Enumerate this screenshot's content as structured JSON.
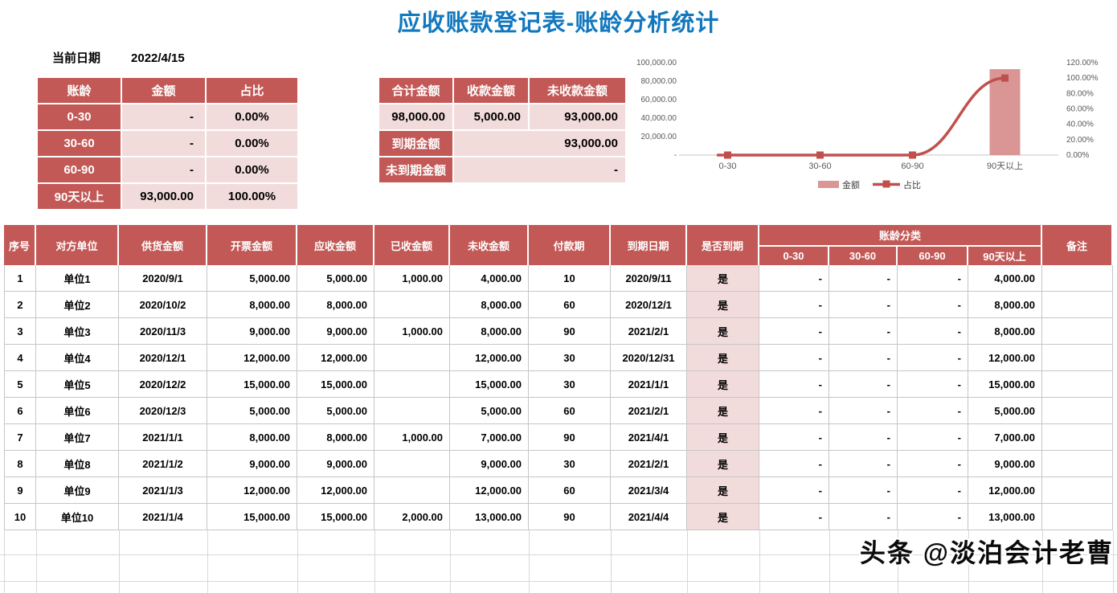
{
  "title": "应收账款登记表-账龄分析统计",
  "current_date": {
    "label": "当前日期",
    "value": "2022/4/15"
  },
  "aging_summary": {
    "headers": [
      "账龄",
      "金额",
      "占比"
    ],
    "rows": [
      {
        "label": "0-30",
        "amount": "-",
        "pct": "0.00%"
      },
      {
        "label": "30-60",
        "amount": "-",
        "pct": "0.00%"
      },
      {
        "label": "60-90",
        "amount": "-",
        "pct": "0.00%"
      },
      {
        "label": "90天以上",
        "amount": "93,000.00",
        "pct": "100.00%"
      }
    ]
  },
  "totals": {
    "headers": [
      "合计金额",
      "收款金额",
      "未收款金额"
    ],
    "values": [
      "98,000.00",
      "5,000.00",
      "93,000.00"
    ],
    "due_label": "到期金额",
    "due_value": "93,000.00",
    "not_due_label": "未到期金额",
    "not_due_value": "-"
  },
  "chart_data": {
    "type": "bar",
    "subtype": "combo bar+line, dual y-axis",
    "categories": [
      "0-30",
      "30-60",
      "60-90",
      "90天以上"
    ],
    "series": [
      {
        "name": "金额",
        "type": "bar",
        "axis": "left",
        "values": [
          0,
          0,
          0,
          93000
        ],
        "color": "#D99694"
      },
      {
        "name": "占比",
        "type": "line",
        "axis": "right",
        "values": [
          0,
          0,
          0,
          1.0
        ],
        "color": "#C0504D"
      }
    ],
    "left_axis": {
      "min": 0,
      "max": 100000,
      "ticks": [
        "-",
        "20,000.00",
        "40,000.00",
        "60,000.00",
        "80,000.00",
        "100,000.00"
      ]
    },
    "right_axis": {
      "min": 0,
      "max": 1.2,
      "ticks": [
        "0.00%",
        "20.00%",
        "40.00%",
        "60.00%",
        "80.00%",
        "100.00%",
        "120.00%"
      ]
    },
    "legend": [
      "金额",
      "占比"
    ],
    "legend_position": "bottom",
    "grid": false
  },
  "main_table": {
    "columns": [
      "序号",
      "对方单位",
      "供货金额",
      "开票金额",
      "应收金额",
      "已收金额",
      "未收金额",
      "付款期",
      "到期日期",
      "是否到期"
    ],
    "group_header": "账龄分类",
    "aging_columns": [
      "0-30",
      "30-60",
      "60-90",
      "90天以上"
    ],
    "remark_column": "备注",
    "rows": [
      {
        "no": "1",
        "unit": "单位1",
        "supply_date": "2020/9/1",
        "invoice": "5,000.00",
        "receivable": "5,000.00",
        "received": "1,000.00",
        "unreceived": "4,000.00",
        "term": "10",
        "due_date": "2020/9/11",
        "is_due": "是",
        "a0": "-",
        "a30": "-",
        "a60": "-",
        "a90": "4,000.00",
        "remark": ""
      },
      {
        "no": "2",
        "unit": "单位2",
        "supply_date": "2020/10/2",
        "invoice": "8,000.00",
        "receivable": "8,000.00",
        "received": "",
        "unreceived": "8,000.00",
        "term": "60",
        "due_date": "2020/12/1",
        "is_due": "是",
        "a0": "-",
        "a30": "-",
        "a60": "-",
        "a90": "8,000.00",
        "remark": ""
      },
      {
        "no": "3",
        "unit": "单位3",
        "supply_date": "2020/11/3",
        "invoice": "9,000.00",
        "receivable": "9,000.00",
        "received": "1,000.00",
        "unreceived": "8,000.00",
        "term": "90",
        "due_date": "2021/2/1",
        "is_due": "是",
        "a0": "-",
        "a30": "-",
        "a60": "-",
        "a90": "8,000.00",
        "remark": ""
      },
      {
        "no": "4",
        "unit": "单位4",
        "supply_date": "2020/12/1",
        "invoice": "12,000.00",
        "receivable": "12,000.00",
        "received": "",
        "unreceived": "12,000.00",
        "term": "30",
        "due_date": "2020/12/31",
        "is_due": "是",
        "a0": "-",
        "a30": "-",
        "a60": "-",
        "a90": "12,000.00",
        "remark": ""
      },
      {
        "no": "5",
        "unit": "单位5",
        "supply_date": "2020/12/2",
        "invoice": "15,000.00",
        "receivable": "15,000.00",
        "received": "",
        "unreceived": "15,000.00",
        "term": "30",
        "due_date": "2021/1/1",
        "is_due": "是",
        "a0": "-",
        "a30": "-",
        "a60": "-",
        "a90": "15,000.00",
        "remark": ""
      },
      {
        "no": "6",
        "unit": "单位6",
        "supply_date": "2020/12/3",
        "invoice": "5,000.00",
        "receivable": "5,000.00",
        "received": "",
        "unreceived": "5,000.00",
        "term": "60",
        "due_date": "2021/2/1",
        "is_due": "是",
        "a0": "-",
        "a30": "-",
        "a60": "-",
        "a90": "5,000.00",
        "remark": ""
      },
      {
        "no": "7",
        "unit": "单位7",
        "supply_date": "2021/1/1",
        "invoice": "8,000.00",
        "receivable": "8,000.00",
        "received": "1,000.00",
        "unreceived": "7,000.00",
        "term": "90",
        "due_date": "2021/4/1",
        "is_due": "是",
        "a0": "-",
        "a30": "-",
        "a60": "-",
        "a90": "7,000.00",
        "remark": ""
      },
      {
        "no": "8",
        "unit": "单位8",
        "supply_date": "2021/1/2",
        "invoice": "9,000.00",
        "receivable": "9,000.00",
        "received": "",
        "unreceived": "9,000.00",
        "term": "30",
        "due_date": "2021/2/1",
        "is_due": "是",
        "a0": "-",
        "a30": "-",
        "a60": "-",
        "a90": "9,000.00",
        "remark": ""
      },
      {
        "no": "9",
        "unit": "单位9",
        "supply_date": "2021/1/3",
        "invoice": "12,000.00",
        "receivable": "12,000.00",
        "received": "",
        "unreceived": "12,000.00",
        "term": "60",
        "due_date": "2021/3/4",
        "is_due": "是",
        "a0": "-",
        "a30": "-",
        "a60": "-",
        "a90": "12,000.00",
        "remark": ""
      },
      {
        "no": "10",
        "unit": "单位10",
        "supply_date": "2021/1/4",
        "invoice": "15,000.00",
        "receivable": "15,000.00",
        "received": "2,000.00",
        "unreceived": "13,000.00",
        "term": "90",
        "due_date": "2021/4/4",
        "is_due": "是",
        "a0": "-",
        "a30": "-",
        "a60": "-",
        "a90": "13,000.00",
        "remark": ""
      }
    ]
  },
  "watermark": "头条 @淡泊会计老曹",
  "colors": {
    "title_blue": "#1278BE",
    "banner_red": "#C25956",
    "cell_pink": "#F2DCDB",
    "bar_pink": "#D99694",
    "line_red": "#C0504D",
    "grid_gray": "#D8D8D8"
  }
}
